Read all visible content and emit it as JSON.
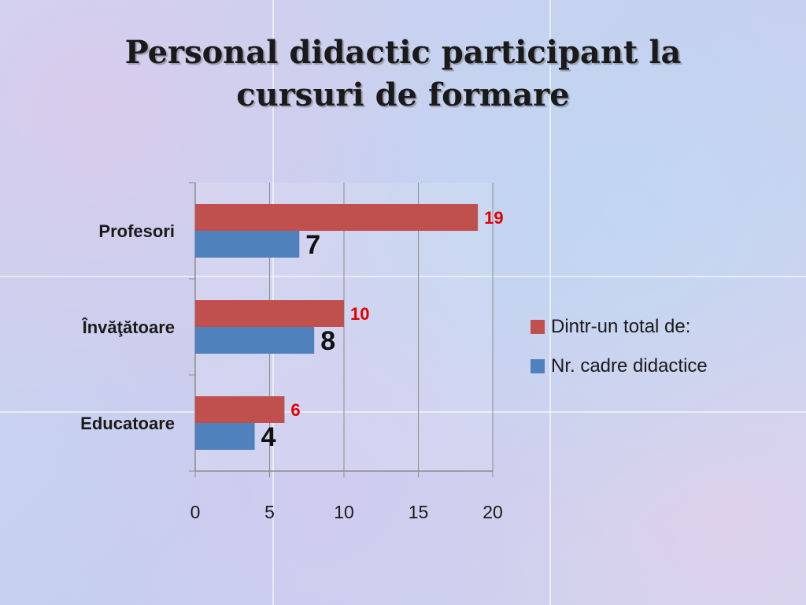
{
  "slide": {
    "title_line1": "Personal didactic participant la",
    "title_line2": "cursuri de formare"
  },
  "colors": {
    "series_total": "#c0504d",
    "series_count": "#4f81bd",
    "label_total": "#e00000",
    "label_count": "#111111"
  },
  "chart_data": {
    "type": "bar",
    "orientation": "horizontal",
    "title": "Personal didactic participant la cursuri de formare",
    "categories": [
      "Profesori",
      "Învăţătoare",
      "Educatoare"
    ],
    "series": [
      {
        "name": "Dintr-un total de:",
        "values": [
          19,
          10,
          6
        ]
      },
      {
        "name": "Nr. cadre didactice",
        "values": [
          7,
          8,
          4
        ]
      }
    ],
    "xlim": [
      0,
      20
    ],
    "xticks": [
      0,
      5,
      10,
      15,
      20
    ],
    "grid": true,
    "legend_position": "right",
    "data_labels": true
  }
}
